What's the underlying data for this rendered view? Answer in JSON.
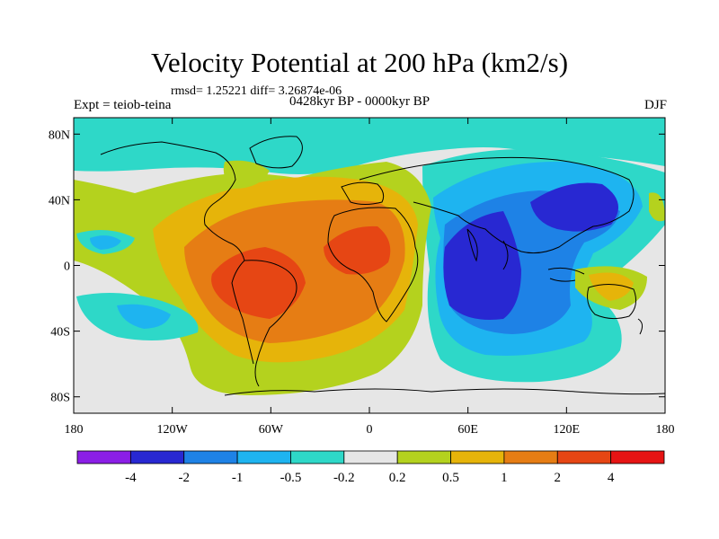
{
  "title": "Velocity Potential at 200 hPa (km2/s)",
  "stats": "rmsd= 1.25221  diff= 3.26874e-06",
  "experiment": "Expt = teiob-teina",
  "period": "0428kyr BP - 0000kyr BP",
  "season": "DJF",
  "chart_data": {
    "type": "heatmap",
    "variable": "Velocity Potential at 200 hPa",
    "units": "km2/s",
    "lon_range": [
      -180,
      180
    ],
    "lat_range": [
      -90,
      90
    ],
    "x_ticks": [
      {
        "value": -180,
        "label": "180"
      },
      {
        "value": -120,
        "label": "120W"
      },
      {
        "value": -60,
        "label": "60W"
      },
      {
        "value": 0,
        "label": "0"
      },
      {
        "value": 60,
        "label": "60E"
      },
      {
        "value": 120,
        "label": "120E"
      },
      {
        "value": 180,
        "label": "180"
      }
    ],
    "y_ticks": [
      {
        "value": 80,
        "label": "80N"
      },
      {
        "value": 40,
        "label": "40N"
      },
      {
        "value": 0,
        "label": "0"
      },
      {
        "value": -40,
        "label": "40S"
      },
      {
        "value": -80,
        "label": "80S"
      }
    ],
    "colorbar": {
      "levels": [
        "-4",
        "-2",
        "-1",
        "-0.5",
        "-0.2",
        "0.2",
        "0.5",
        "1",
        "2",
        "4"
      ],
      "colors": [
        "#8b1ee6",
        "#2828d2",
        "#1e82e6",
        "#1eb4f0",
        "#2ed8c8",
        "#e6e6e6",
        "#b4d21e",
        "#e6b40a",
        "#e67d14",
        "#e64614",
        "#e61414"
      ]
    },
    "regions": [
      {
        "name": "atlantic-south-america-positive",
        "center_lon": -60,
        "center_lat": 10,
        "peak_level": "2 to 4"
      },
      {
        "name": "west-africa-positive",
        "center_lon": -5,
        "center_lat": 10,
        "peak_level": "2 to 4"
      },
      {
        "name": "indian-ocean-negative",
        "center_lon": 75,
        "center_lat": 5,
        "peak_level": "-4 to -2"
      },
      {
        "name": "east-asia-negative",
        "center_lon": 110,
        "center_lat": 38,
        "peak_level": "-4 to -2"
      },
      {
        "name": "australia-positive",
        "center_lon": 135,
        "center_lat": -15,
        "peak_level": "1 to 2"
      },
      {
        "name": "south-pacific-negative",
        "center_lon": -155,
        "center_lat": -30,
        "peak_level": "-1 to -0.5"
      },
      {
        "name": "arctic-negative",
        "center_lon": 0,
        "center_lat": 85,
        "peak_level": "-0.5 to -0.2"
      }
    ]
  }
}
